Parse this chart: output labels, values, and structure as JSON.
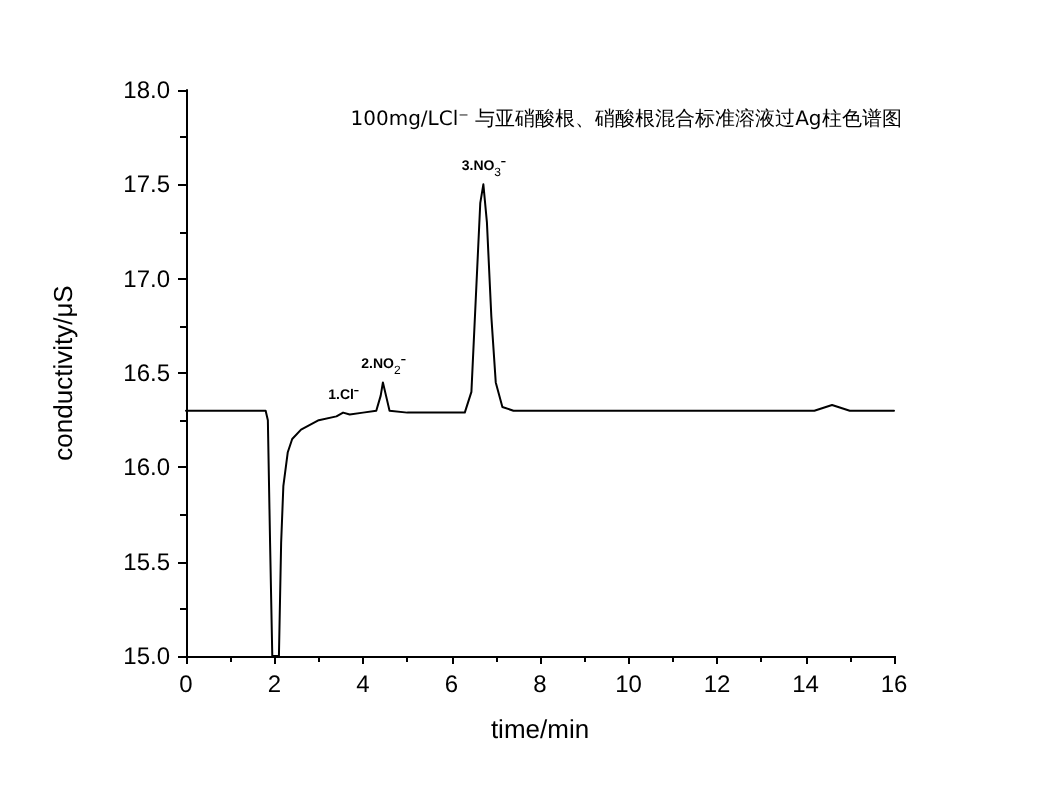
{
  "chart_data": {
    "type": "line",
    "title": "100mg/LCl⁻ 与亚硝酸根、硝酸根混合标准溶液过Ag柱色谱图",
    "xlabel": "time/min",
    "ylabel": "conductivity/μS",
    "series": [
      {
        "color": "#000000",
        "x": [
          0,
          1.8,
          1.85,
          1.9,
          1.95,
          2.1,
          2.15,
          2.2,
          2.3,
          2.4,
          2.6,
          3.0,
          3.4,
          3.55,
          3.7,
          4.0,
          4.3,
          4.4,
          4.45,
          4.52,
          4.6,
          5.0,
          6.3,
          6.45,
          6.55,
          6.65,
          6.72,
          6.8,
          6.9,
          7.0,
          7.15,
          7.4,
          14.2,
          14.6,
          15.0,
          16.0
        ],
        "values": [
          16.3,
          16.3,
          16.25,
          15.6,
          15.0,
          15.0,
          15.6,
          15.9,
          16.08,
          16.15,
          16.2,
          16.25,
          16.27,
          16.29,
          16.28,
          16.29,
          16.3,
          16.38,
          16.45,
          16.38,
          16.3,
          16.29,
          16.29,
          16.4,
          16.9,
          17.4,
          17.5,
          17.3,
          16.8,
          16.45,
          16.32,
          16.3,
          16.3,
          16.33,
          16.3,
          16.3
        ]
      }
    ],
    "annotations": [
      {
        "text": "1.Cl⁻",
        "x": 3.55,
        "y": 16.29
      },
      {
        "text": "2.NO$_{2}$⁻",
        "x": 4.45,
        "y": 16.45
      },
      {
        "text": "3.NO$_{3}$⁻",
        "x": 6.72,
        "y": 17.5
      }
    ],
    "xlim": [
      0,
      16
    ],
    "xticks": [
      0,
      2,
      4,
      6,
      8,
      10,
      12,
      14,
      16
    ],
    "ylim": [
      15.0,
      18.0
    ],
    "yticks": [
      {
        "value": 15.0,
        "label": "15.0"
      },
      {
        "value": 15.5,
        "label": "15.5"
      },
      {
        "value": 16.0,
        "label": "16.0"
      },
      {
        "value": 16.5,
        "label": "16.5"
      },
      {
        "value": 17.0,
        "label": "17.0"
      },
      {
        "value": 17.5,
        "label": "17.5"
      },
      {
        "value": 18.0,
        "label": "18.0"
      }
    ],
    "grid": false,
    "marker": "none",
    "line_style": "solid"
  }
}
